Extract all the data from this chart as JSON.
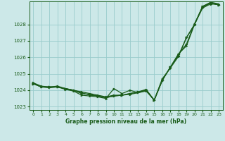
{
  "title": "Graphe pression niveau de la mer (hPa)",
  "background_color": "#cce8e8",
  "grid_color": "#99cccc",
  "line_color": "#1a5c1a",
  "marker_color": "#1a5c1a",
  "xlim": [
    -0.5,
    23.5
  ],
  "ylim": [
    1022.8,
    1029.4
  ],
  "yticks": [
    1023,
    1024,
    1025,
    1026,
    1027,
    1028
  ],
  "xticks": [
    0,
    1,
    2,
    3,
    4,
    5,
    6,
    7,
    8,
    9,
    10,
    11,
    12,
    13,
    14,
    15,
    16,
    17,
    18,
    19,
    20,
    21,
    22,
    23
  ],
  "series": [
    [
      1024.45,
      1024.25,
      1024.2,
      1024.25,
      1024.1,
      1024.0,
      1023.8,
      1023.75,
      1023.65,
      1023.55,
      1023.65,
      1023.7,
      1023.8,
      1023.9,
      1024.0,
      1023.4,
      1024.6,
      1025.4,
      1026.2,
      1026.8,
      1028.05,
      1029.05,
      1029.3,
      1029.2
    ],
    [
      1024.4,
      1024.2,
      1024.2,
      1024.2,
      1024.1,
      1024.0,
      1023.9,
      1023.8,
      1023.7,
      1023.6,
      1023.7,
      1023.7,
      1023.8,
      1023.9,
      1024.05,
      1023.4,
      1024.6,
      1025.4,
      1026.2,
      1026.7,
      1028.0,
      1029.1,
      1029.35,
      1029.25
    ],
    [
      1024.4,
      1024.2,
      1024.15,
      1024.2,
      1024.05,
      1023.95,
      1023.7,
      1023.65,
      1023.6,
      1023.5,
      1024.1,
      1023.8,
      1024.0,
      1023.85,
      1024.0,
      1023.4,
      1024.7,
      1025.35,
      1026.05,
      1027.2,
      1028.0,
      1029.1,
      1029.3,
      1029.2
    ],
    [
      1024.4,
      1024.2,
      1024.2,
      1024.2,
      1024.1,
      1024.0,
      1023.85,
      1023.7,
      1023.65,
      1023.55,
      1023.65,
      1023.7,
      1023.75,
      1023.85,
      1023.95,
      1023.4,
      1024.6,
      1025.4,
      1026.1,
      1027.2,
      1028.0,
      1029.0,
      1029.25,
      1029.2
    ]
  ]
}
